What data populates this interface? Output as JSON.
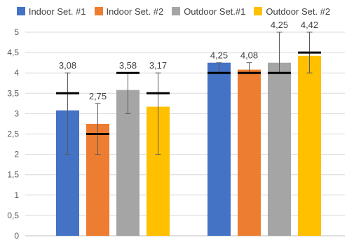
{
  "chart_data": {
    "type": "bar",
    "title": "",
    "xlabel": "",
    "ylabel": "",
    "ylim": [
      0,
      5
    ],
    "yticks": [
      "0",
      "0,5",
      "1",
      "1,5",
      "2",
      "2,5",
      "3",
      "3,5",
      "4",
      "4,5",
      "5"
    ],
    "ytick_values": [
      0,
      0.5,
      1,
      1.5,
      2,
      2.5,
      3,
      3.5,
      4,
      4.5,
      5
    ],
    "grid": true,
    "legend_position": "top",
    "categories": [
      "",
      ""
    ],
    "series": [
      {
        "name": "Indoor Set. #1",
        "color": "#4472C4",
        "values": [
          3.08,
          4.25
        ],
        "labels": [
          "3,08",
          "4,25"
        ],
        "err_low": [
          2.0,
          4.0
        ],
        "err_high": [
          4.0,
          4.25
        ],
        "marker": [
          3.5,
          4.0
        ]
      },
      {
        "name": "Indoor Set. #2",
        "color": "#ED7D31",
        "values": [
          2.75,
          4.08
        ],
        "labels": [
          "2,75",
          "4,08"
        ],
        "err_low": [
          2.0,
          4.0
        ],
        "err_high": [
          3.25,
          4.25
        ],
        "marker": [
          2.5,
          4.0
        ]
      },
      {
        "name": "Outdoor Set.#1",
        "color": "#A5A5A5",
        "values": [
          3.58,
          4.25
        ],
        "labels": [
          "3,58",
          "4,25"
        ],
        "err_low": [
          3.0,
          4.0
        ],
        "err_high": [
          4.0,
          5.0
        ],
        "marker": [
          4.0,
          4.0
        ]
      },
      {
        "name": "Outdoor Set. #2",
        "color": "#FFC000",
        "values": [
          3.17,
          4.42
        ],
        "labels": [
          "3,17",
          "4,42"
        ],
        "err_low": [
          2.0,
          4.0
        ],
        "err_high": [
          4.0,
          5.0
        ],
        "marker": [
          3.5,
          4.5
        ]
      }
    ]
  }
}
